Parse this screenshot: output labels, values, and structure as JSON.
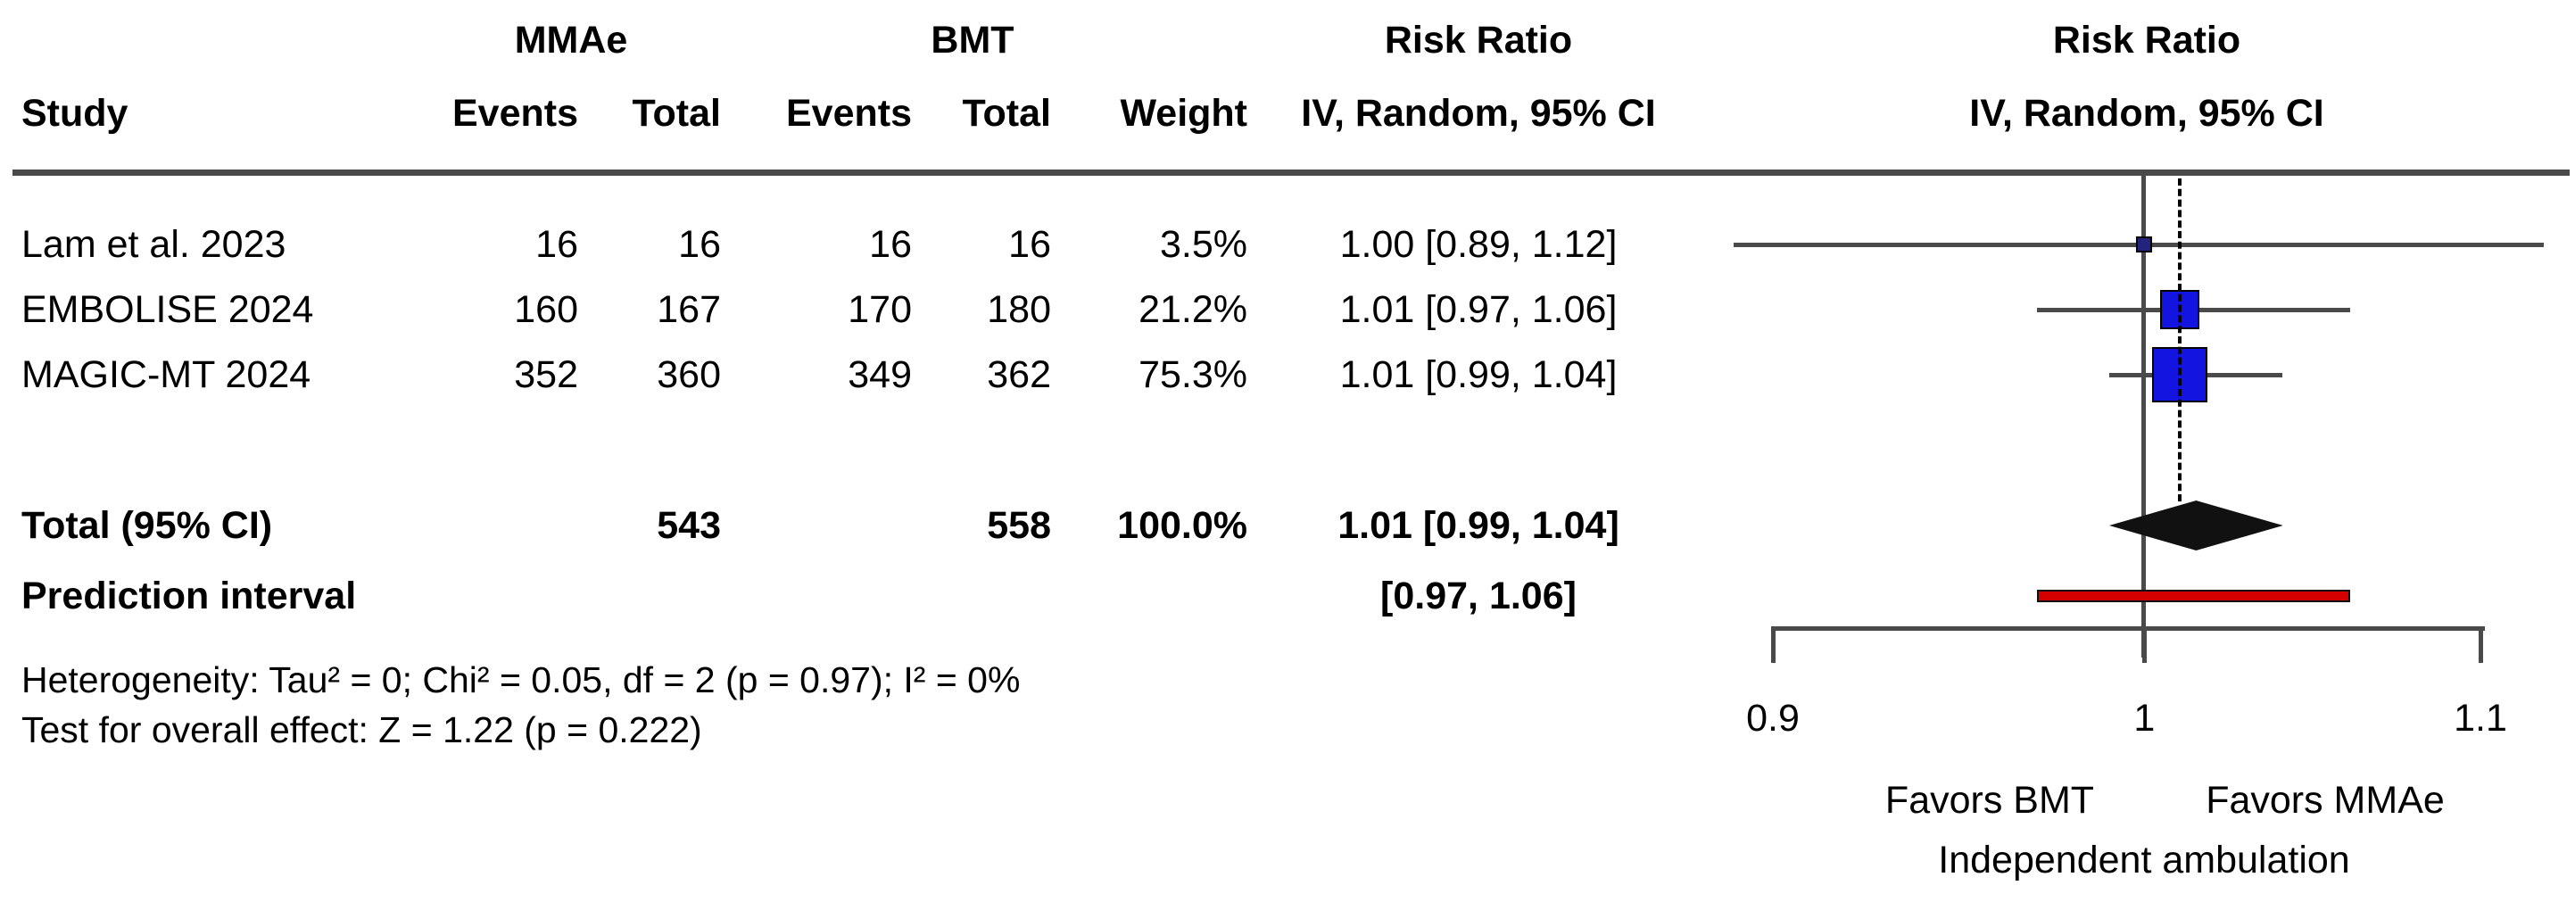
{
  "table_header": {
    "group1": "MMAe",
    "group2": "BMT",
    "study": "Study",
    "events1": "Events",
    "total1": "Total",
    "events2": "Events",
    "total2": "Total",
    "weight": "Weight",
    "effect_line1": "Risk Ratio",
    "effect_line2": "IV, Random, 95% CI"
  },
  "plot_header": {
    "line1": "Risk Ratio",
    "line2": "IV, Random, 95% CI"
  },
  "chart_data": {
    "type": "forest",
    "x_scale": "log",
    "axis": {
      "xmin": 0.9,
      "xmax": 1.1,
      "ticks": [
        0.9,
        1.0,
        1.1
      ],
      "tick_labels": [
        "0.9",
        "1",
        "1.1"
      ],
      "reference_line": 1.0
    },
    "studies": [
      {
        "name": "Lam et al. 2023",
        "events_mmae": "16",
        "total_mmae": "16",
        "events_bmt": "16",
        "total_bmt": "16",
        "weight": "3.5%",
        "rr_text": "1.00 [0.89, 1.12]",
        "est": 1.0,
        "lo": 0.89,
        "hi": 1.12,
        "marker_size": 18,
        "marker_color": "#23237e"
      },
      {
        "name": "EMBOLISE 2024",
        "events_mmae": "160",
        "total_mmae": "167",
        "events_bmt": "170",
        "total_bmt": "180",
        "weight": "21.2%",
        "rr_text": "1.01 [0.97, 1.06]",
        "est": 1.01,
        "lo": 0.97,
        "hi": 1.06,
        "marker_size": 44,
        "marker_color": "#1414e0"
      },
      {
        "name": "MAGIC-MT 2024",
        "events_mmae": "352",
        "total_mmae": "360",
        "events_bmt": "349",
        "total_bmt": "362",
        "weight": "75.3%",
        "rr_text": "1.01 [0.99, 1.04]",
        "est": 1.01,
        "lo": 0.99,
        "hi": 1.04,
        "marker_size": 62,
        "marker_color": "#1414e0"
      }
    ],
    "total": {
      "label": "Total (95% CI)",
      "total_mmae": "543",
      "total_bmt": "558",
      "weight": "100.0%",
      "rr_text": "1.01 [0.99, 1.04]",
      "est": 1.01,
      "lo": 0.99,
      "hi": 1.04,
      "diamond_color": "#111111"
    },
    "prediction": {
      "label": "Prediction interval",
      "ci_text": "[0.97, 1.06]",
      "lo": 0.97,
      "hi": 1.06,
      "bar_color": "#d40000"
    },
    "footnotes": [
      "Heterogeneity: Tau² = 0; Chi² = 0.05, df = 2 (p = 0.97); I² = 0%",
      "Test for overall effect: Z = 1.22 (p = 0.222)"
    ],
    "favors_left": "Favors BMT",
    "favors_right": "Favors MMAe",
    "favors_subtitle": "Independent ambulation"
  }
}
